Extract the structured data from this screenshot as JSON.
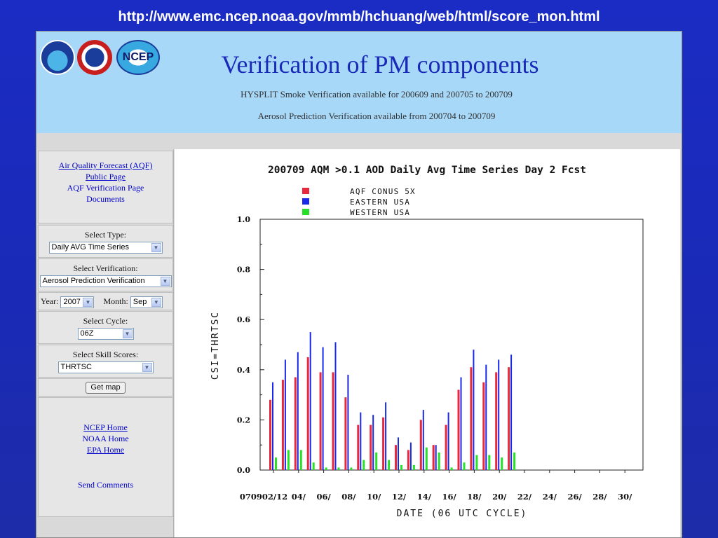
{
  "slide": {
    "url": "http://www.emc.ncep.noaa.gov/mmb/hchuang/web/html/score_mon.html"
  },
  "header": {
    "title": "Verification of PM components",
    "line1": "HYSPLIT Smoke Verification available for 200609 and 200705 to 200709",
    "line2": "Aerosol Prediction Verification available from 200704 to 200709",
    "logos": [
      "NOAA",
      "National Weather Service",
      "NCEP"
    ],
    "ncep_logo_text": "NCEP"
  },
  "sidebar": {
    "links": {
      "aqf_public_line1": "Air Quality Forecast (AQF)",
      "aqf_public_line2": "Public Page",
      "aqf_verif": "AQF Verification Page",
      "documents": "Documents"
    },
    "select_type": {
      "label": "Select Type:",
      "value": "Daily AVG Time Series"
    },
    "select_verification": {
      "label": "Select Verification:",
      "value": "Aerosol Prediction Verification"
    },
    "year": {
      "label": "Year:",
      "value": "2007"
    },
    "month": {
      "label": "Month:",
      "value": "Sep"
    },
    "select_cycle": {
      "label": "Select Cycle:",
      "value": "06Z"
    },
    "select_skill": {
      "label": "Select Skill Scores:",
      "value": "THRTSC"
    },
    "get_map": "Get map",
    "bottom_links": {
      "ncep_home": "NCEP Home",
      "noaa_home": "NOAA Home",
      "epa_home": "EPA Home",
      "send_comments": "Send Comments"
    }
  },
  "colors": {
    "background_blue": "#1b2cc4",
    "header_bg": "#a8d8f8",
    "title_blue": "#1a2ab8",
    "series_red": "#e8283c",
    "series_blue": "#1a28e8",
    "series_green": "#28e028"
  },
  "chart_data": {
    "type": "bar",
    "title": "200709 AQM >0.1 AOD Daily Avg Time Series Day 2 Fcst",
    "xlabel": "DATE (06 UTC CYCLE)",
    "ylabel": "CSI=THRTSC",
    "ylim": [
      0.0,
      1.0
    ],
    "yticks": [
      "0.0",
      "0.2",
      "0.4",
      "0.6",
      "0.8",
      "1.0"
    ],
    "xtick_labels": [
      "070902/12",
      "04/",
      "06/",
      "08/",
      "10/",
      "12/",
      "14/",
      "16/",
      "18/",
      "20/",
      "22/",
      "24/",
      "26/",
      "28/",
      "30/"
    ],
    "legend_placement": "top",
    "days": [
      2,
      3,
      4,
      5,
      6,
      7,
      8,
      9,
      10,
      11,
      12,
      13,
      14,
      15,
      16,
      17,
      18,
      19,
      20,
      21
    ],
    "series": [
      {
        "name": "AQF CONUS 5X",
        "color": "#e8283c",
        "values": [
          0.28,
          0.36,
          0.37,
          0.45,
          0.39,
          0.39,
          0.29,
          0.18,
          0.18,
          0.21,
          0.1,
          0.08,
          0.2,
          0.1,
          0.18,
          0.32,
          0.41,
          0.35,
          0.39,
          0.41
        ]
      },
      {
        "name": "EASTERN USA",
        "color": "#1a28e8",
        "values": [
          0.35,
          0.44,
          0.47,
          0.55,
          0.49,
          0.51,
          0.38,
          0.23,
          0.22,
          0.27,
          0.13,
          0.11,
          0.24,
          0.1,
          0.23,
          0.37,
          0.48,
          0.42,
          0.44,
          0.46
        ]
      },
      {
        "name": "WESTERN USA",
        "color": "#28e028",
        "values": [
          0.05,
          0.08,
          0.08,
          0.03,
          0.01,
          0.01,
          0.01,
          0.04,
          0.07,
          0.04,
          0.02,
          0.02,
          0.09,
          0.07,
          0.01,
          0.03,
          0.06,
          0.06,
          0.05,
          0.07
        ]
      }
    ]
  }
}
